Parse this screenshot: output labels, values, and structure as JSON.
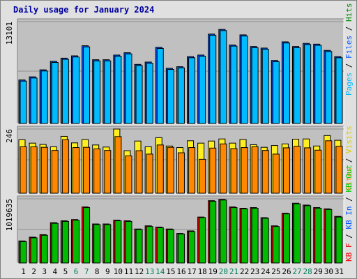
{
  "title": "Daily usage for January 2024",
  "colors": {
    "pages": "#00bbff",
    "files": "#0055ff",
    "hits": "#008800",
    "visits": "#ffee22",
    "sites": "#ff8800",
    "kb_in": "#00bb00",
    "kb_out": "#00cc00",
    "kb_f": "#ee0000",
    "weekend_label": "#00805c",
    "plot_bg": "#c0c0c0",
    "frame_bg": "#e0e0e0"
  },
  "chart_data": [
    {
      "type": "bar",
      "name": "hits-files-pages",
      "y_max_label": "13101",
      "ylim": [
        0,
        13101
      ],
      "categories": [
        "1",
        "2",
        "3",
        "4",
        "5",
        "6",
        "7",
        "8",
        "9",
        "10",
        "11",
        "12",
        "13",
        "14",
        "15",
        "16",
        "17",
        "18",
        "19",
        "20",
        "21",
        "22",
        "23",
        "24",
        "25",
        "26",
        "27",
        "28",
        "29",
        "30",
        "31"
      ],
      "weekend_days": [
        "6",
        "7",
        "13",
        "14",
        "20",
        "21",
        "27",
        "28"
      ],
      "legend": [
        "Pages",
        "Files",
        "Hits"
      ],
      "series": [
        {
          "name": "Hits",
          "values": [
            5600,
            6000,
            6900,
            8000,
            8400,
            8700,
            10000,
            8200,
            8200,
            8800,
            9100,
            7600,
            7900,
            9800,
            7100,
            7300,
            8600,
            8800,
            11500,
            12100,
            10100,
            11400,
            9900,
            9700,
            8100,
            10500,
            9900,
            10300,
            10200,
            9400,
            8600
          ]
        },
        {
          "name": "Pages",
          "values": [
            5450,
            5850,
            6750,
            7850,
            8250,
            8550,
            9850,
            8050,
            8050,
            8650,
            8950,
            7450,
            7750,
            9650,
            6950,
            7150,
            8450,
            8650,
            11350,
            11950,
            9950,
            11250,
            9750,
            9550,
            7950,
            10350,
            9750,
            10150,
            10050,
            9250,
            8450
          ]
        }
      ]
    },
    {
      "type": "bar",
      "name": "visits-sites",
      "y_max_label": "246",
      "ylim": [
        0,
        246
      ],
      "categories": [
        "1",
        "2",
        "3",
        "4",
        "5",
        "6",
        "7",
        "8",
        "9",
        "10",
        "11",
        "12",
        "13",
        "14",
        "15",
        "16",
        "17",
        "18",
        "19",
        "20",
        "21",
        "22",
        "23",
        "24",
        "25",
        "26",
        "27",
        "28",
        "29",
        "30",
        "31"
      ],
      "legend": [
        "Visits",
        "Sites"
      ],
      "series": [
        {
          "name": "Visits",
          "values": [
            205,
            192,
            187,
            178,
            218,
            193,
            206,
            185,
            177,
            246,
            163,
            200,
            178,
            213,
            181,
            175,
            201,
            192,
            200,
            208,
            192,
            206,
            186,
            176,
            183,
            189,
            207,
            208,
            181,
            221,
            203
          ]
        },
        {
          "name": "Sites",
          "values": [
            178,
            178,
            176,
            164,
            205,
            175,
            176,
            170,
            164,
            217,
            143,
            163,
            150,
            185,
            176,
            155,
            175,
            130,
            173,
            189,
            171,
            175,
            178,
            164,
            150,
            174,
            180,
            174,
            165,
            201,
            180
          ]
        }
      ]
    },
    {
      "type": "bar",
      "name": "kbytes",
      "y_max_label": "1019635",
      "ylim": [
        0,
        1019635
      ],
      "categories": [
        "1",
        "2",
        "3",
        "4",
        "5",
        "6",
        "7",
        "8",
        "9",
        "10",
        "11",
        "12",
        "13",
        "14",
        "15",
        "16",
        "17",
        "18",
        "19",
        "20",
        "21",
        "22",
        "23",
        "24",
        "25",
        "26",
        "27",
        "28",
        "29",
        "30",
        "31"
      ],
      "legend": [
        "KB F",
        "KB In",
        "KB Out"
      ],
      "series": [
        {
          "name": "KB F",
          "values": [
            350000,
            410000,
            450000,
            640000,
            670000,
            690000,
            890000,
            620000,
            620000,
            680000,
            670000,
            540000,
            590000,
            570000,
            540000,
            470000,
            510000,
            730000,
            990000,
            1010000,
            890000,
            870000,
            880000,
            720000,
            590000,
            790000,
            950000,
            920000,
            880000,
            860000,
            740000
          ]
        },
        {
          "name": "KB In",
          "values": [
            340000,
            400000,
            440000,
            630000,
            660000,
            680000,
            880000,
            610000,
            610000,
            670000,
            660000,
            530000,
            580000,
            560000,
            530000,
            460000,
            500000,
            720000,
            980000,
            1000000,
            880000,
            860000,
            870000,
            710000,
            580000,
            780000,
            940000,
            910000,
            870000,
            850000,
            730000
          ]
        }
      ]
    }
  ]
}
